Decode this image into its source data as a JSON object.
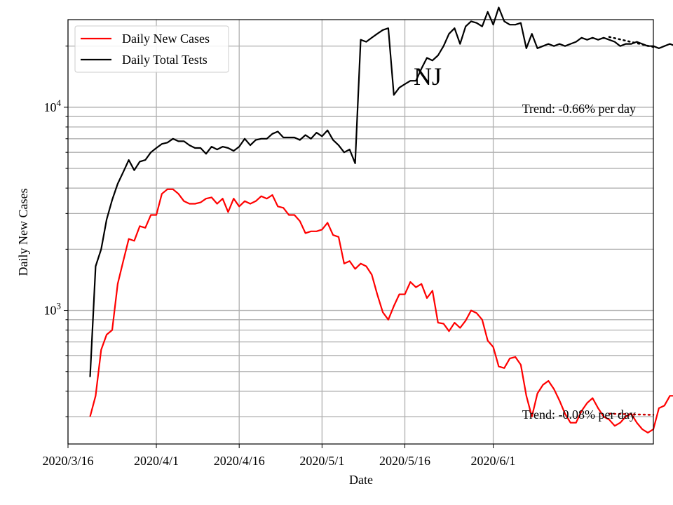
{
  "chart_data": {
    "type": "line",
    "title": "NJ",
    "xlabel": "Date",
    "ylabel": "Daily New Cases",
    "yscale": "log",
    "ylim": [
      220,
      27000
    ],
    "x_start": "2020-03-16",
    "x_end": "2020-06-30",
    "grid": true,
    "legend_position": "top-left",
    "x_ticks": [
      {
        "date": "2020-03-16",
        "label": "2020/3/16"
      },
      {
        "date": "2020-04-01",
        "label": "2020/4/1"
      },
      {
        "date": "2020-04-16",
        "label": "2020/4/16"
      },
      {
        "date": "2020-05-01",
        "label": "2020/5/1"
      },
      {
        "date": "2020-05-16",
        "label": "2020/5/16"
      },
      {
        "date": "2020-06-01",
        "label": "2020/6/1"
      }
    ],
    "y_ticks": [
      {
        "value": 1000,
        "base": "10",
        "exp": "3"
      },
      {
        "value": 10000,
        "base": "10",
        "exp": "4"
      }
    ],
    "start_date": "2020-03-20",
    "series": [
      {
        "name": "Daily New Cases",
        "color": "#ff0000",
        "values": [
          300,
          380,
          640,
          760,
          800,
          1350,
          1750,
          2250,
          2200,
          2600,
          2550,
          2950,
          2950,
          3750,
          3950,
          3950,
          3750,
          3450,
          3350,
          3350,
          3400,
          3550,
          3600,
          3350,
          3550,
          3050,
          3550,
          3250,
          3450,
          3350,
          3450,
          3650,
          3550,
          3700,
          3250,
          3200,
          2950,
          2950,
          2750,
          2400,
          2450,
          2450,
          2500,
          2700,
          2350,
          2300,
          1700,
          1750,
          1600,
          1700,
          1650,
          1500,
          1200,
          980,
          900,
          1050,
          1200,
          1200,
          1380,
          1300,
          1350,
          1150,
          1250,
          870,
          860,
          790,
          870,
          820,
          890,
          1000,
          970,
          900,
          710,
          660,
          530,
          520,
          580,
          590,
          540,
          380,
          300,
          390,
          430,
          450,
          410,
          360,
          310,
          280,
          280,
          320,
          350,
          370,
          330,
          300,
          290,
          270,
          280,
          300,
          310,
          280,
          260,
          250,
          260,
          330,
          340,
          380,
          380,
          400
        ]
      },
      {
        "name": "Daily Total Tests",
        "color": "#000000",
        "values": [
          470,
          1650,
          2000,
          2800,
          3500,
          4200,
          4800,
          5500,
          4900,
          5400,
          5500,
          6000,
          6300,
          6600,
          6700,
          7000,
          6800,
          6800,
          6500,
          6300,
          6300,
          5900,
          6400,
          6200,
          6400,
          6300,
          6100,
          6400,
          7000,
          6500,
          6900,
          7000,
          7000,
          7400,
          7600,
          7100,
          7100,
          7100,
          6900,
          7300,
          7000,
          7500,
          7200,
          7700,
          6900,
          6500,
          6000,
          6200,
          5300,
          21500,
          21000,
          22000,
          23000,
          24000,
          24500,
          11500,
          12500,
          13000,
          13500,
          13500,
          15500,
          17500,
          17000,
          18000,
          20000,
          23000,
          24500,
          20500,
          25000,
          26500,
          26000,
          25000,
          29500,
          25500,
          31000,
          26500,
          25500,
          25500,
          26000,
          19500,
          23000,
          19500,
          20000,
          20500,
          20000,
          20500,
          20000,
          20500,
          21000,
          22000,
          21500,
          22000,
          21500,
          22000,
          21500,
          21000,
          20000,
          20500,
          20500,
          21000,
          20500,
          20000,
          20000,
          19500,
          20000,
          20500,
          20000,
          19500
        ]
      }
    ],
    "trends": [
      {
        "label": "Trend: -0.66% per day",
        "color": "#000000",
        "start_value": 22200,
        "end_value": 19800,
        "start_index": 94,
        "end_index": 111
      },
      {
        "label": "Trend: -0.08% per day",
        "color": "#cc0000",
        "start_value": 310,
        "end_value": 306,
        "start_index": 94,
        "end_index": 111
      }
    ]
  }
}
